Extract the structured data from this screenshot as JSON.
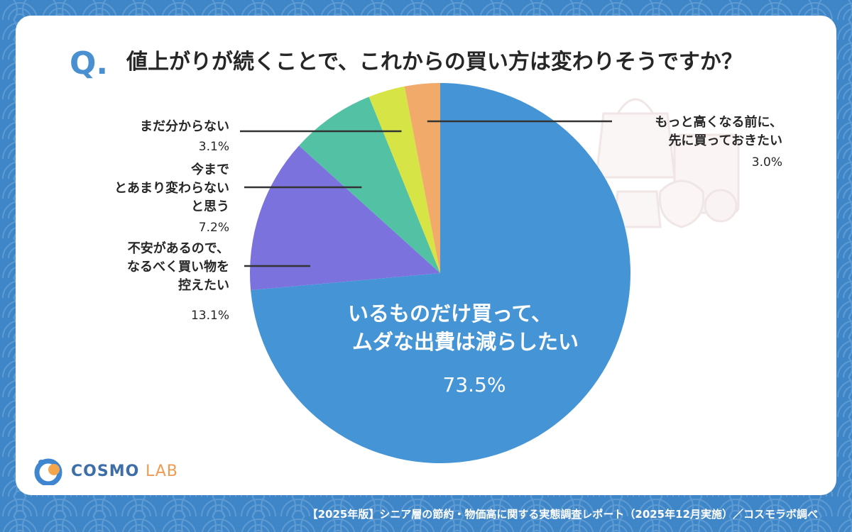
{
  "question": {
    "mark": "Q.",
    "text": "値上がりが続くことで、これからの買い方は変わりそうですか？"
  },
  "chart_data": {
    "type": "pie",
    "title": "値上がりが続くことで、これからの買い方は変わりそうですか？",
    "unit": "%",
    "start_angle_deg": 0,
    "direction": "clockwise",
    "slices": [
      {
        "label": "いるものだけ買って、ムダな出費は減らしたい",
        "lines": [
          "いるものだけ買って、",
          "ムダな出費は減らしたい"
        ],
        "value": 73.5,
        "value_label": "73.5%",
        "color": "#4595d6"
      },
      {
        "label": "不安があるので、なるべく買い物を控えたい",
        "lines": [
          "不安があるので、",
          "なるべく買い物を",
          "控えたい"
        ],
        "value": 13.1,
        "value_label": "13.1%",
        "color": "#7b72de"
      },
      {
        "label": "今までとあまり変わらないと思う",
        "lines": [
          "今まで",
          "とあまり変わらない",
          "と思う"
        ],
        "value": 7.2,
        "value_label": "7.2%",
        "color": "#52c1a4"
      },
      {
        "label": "まだ分からない",
        "lines": [
          "まだ分からない"
        ],
        "value": 3.1,
        "value_label": "3.1%",
        "color": "#d7e445"
      },
      {
        "label": "もっと高くなる前に、先に買っておきたい",
        "lines": [
          "もっと高くなる前に、",
          "先に買っておきたい"
        ],
        "value": 3.0,
        "value_label": "3.0%",
        "color": "#f2aa6a"
      }
    ]
  },
  "logo": {
    "name": "COSMO",
    "suffix": "LAB"
  },
  "footer": "【2025年版】シニア層の節約・物価高に関する実態調査レポート（2025年12月実施）／コスモラボ調べ",
  "colors": {
    "background": "#3e86c8",
    "card": "#ffffff",
    "accent_blue": "#4a90d0",
    "logo_orange": "#f29a52"
  }
}
